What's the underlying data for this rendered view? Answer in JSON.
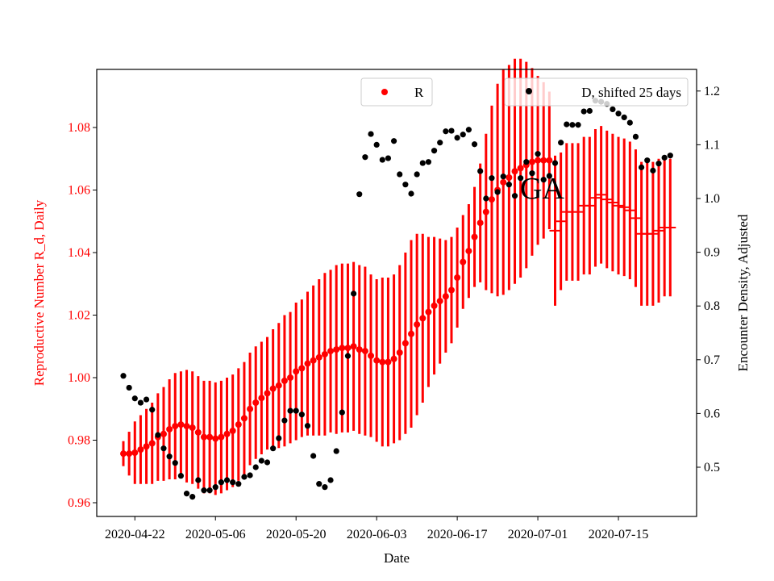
{
  "chart_data": {
    "type": "scatter",
    "annotation": "GA",
    "xlabel": "Date",
    "ylabel_left": "Reproductive Number R_d, Daily",
    "ylabel_right": "Encounter Density, Adjusted",
    "x_ticks": [
      "2020-04-22",
      "2020-05-06",
      "2020-05-20",
      "2020-06-03",
      "2020-06-17",
      "2020-07-01",
      "2020-07-15"
    ],
    "y_left_ticks": [
      "0.96",
      "0.98",
      "1.00",
      "1.02",
      "1.04",
      "1.06",
      "1.08"
    ],
    "y_right_ticks": [
      "0.5",
      "0.6",
      "0.7",
      "0.8",
      "0.9",
      "1.0",
      "1.1",
      "1.2"
    ],
    "y_left_lim": [
      0.955,
      1.097
    ],
    "y_right_lim": [
      0.41,
      1.24
    ],
    "grid": false,
    "legend": [
      {
        "label": "R",
        "placement": "top-center"
      },
      {
        "label": "D, shifted 25 days",
        "placement": "top-right"
      }
    ],
    "colors": {
      "R": "#ff0000",
      "D": "#000000",
      "left_axis": "#ff0000"
    },
    "series": [
      {
        "name": "R",
        "axis": "left",
        "marker": "dot",
        "x": [
          "2020-04-20",
          "2020-04-21",
          "2020-04-22",
          "2020-04-23",
          "2020-04-24",
          "2020-04-25",
          "2020-04-26",
          "2020-04-27",
          "2020-04-28",
          "2020-04-29",
          "2020-04-30",
          "2020-05-01",
          "2020-05-02",
          "2020-05-03",
          "2020-05-04",
          "2020-05-05",
          "2020-05-06",
          "2020-05-07",
          "2020-05-08",
          "2020-05-09",
          "2020-05-10",
          "2020-05-11",
          "2020-05-12",
          "2020-05-13",
          "2020-05-14",
          "2020-05-15",
          "2020-05-16",
          "2020-05-17",
          "2020-05-18",
          "2020-05-19",
          "2020-05-20",
          "2020-05-21",
          "2020-05-22",
          "2020-05-23",
          "2020-05-24",
          "2020-05-25",
          "2020-05-26",
          "2020-05-27",
          "2020-05-28",
          "2020-05-29",
          "2020-05-30",
          "2020-05-31",
          "2020-06-01",
          "2020-06-02",
          "2020-06-03",
          "2020-06-04",
          "2020-06-05",
          "2020-06-06",
          "2020-06-07",
          "2020-06-08",
          "2020-06-09",
          "2020-06-10",
          "2020-06-11",
          "2020-06-12",
          "2020-06-13",
          "2020-06-14",
          "2020-06-15",
          "2020-06-16",
          "2020-06-17",
          "2020-06-18",
          "2020-06-19",
          "2020-06-20",
          "2020-06-21",
          "2020-06-22",
          "2020-06-23",
          "2020-06-24",
          "2020-06-25",
          "2020-06-26",
          "2020-06-27",
          "2020-06-28",
          "2020-06-29",
          "2020-06-30",
          "2020-07-01",
          "2020-07-02",
          "2020-07-03"
        ],
        "y": [
          0.9757,
          0.9757,
          0.976,
          0.977,
          0.978,
          0.979,
          0.981,
          0.982,
          0.9835,
          0.9845,
          0.985,
          0.9845,
          0.984,
          0.9825,
          0.981,
          0.981,
          0.9805,
          0.981,
          0.982,
          0.983,
          0.985,
          0.987,
          0.99,
          0.992,
          0.9935,
          0.995,
          0.9965,
          0.9975,
          0.999,
          1.0,
          1.002,
          1.003,
          1.0045,
          1.0055,
          1.0065,
          1.0075,
          1.0085,
          1.009,
          1.0095,
          1.0095,
          1.01,
          1.009,
          1.0085,
          1.007,
          1.0055,
          1.005,
          1.005,
          1.006,
          1.008,
          1.011,
          1.014,
          1.017,
          1.019,
          1.021,
          1.023,
          1.0245,
          1.026,
          1.028,
          1.032,
          1.037,
          1.0405,
          1.045,
          1.0495,
          1.053,
          1.057,
          1.06,
          1.0625,
          1.064,
          1.066,
          1.067,
          1.068,
          1.069,
          1.0695,
          1.0695,
          1.0695
        ],
        "yerr": [
          0.004,
          0.007,
          0.01,
          0.011,
          0.012,
          0.013,
          0.014,
          0.015,
          0.016,
          0.017,
          0.017,
          0.018,
          0.018,
          0.018,
          0.018,
          0.018,
          0.018,
          0.018,
          0.018,
          0.018,
          0.018,
          0.018,
          0.018,
          0.018,
          0.018,
          0.018,
          0.019,
          0.02,
          0.021,
          0.021,
          0.022,
          0.022,
          0.023,
          0.024,
          0.025,
          0.026,
          0.026,
          0.027,
          0.027,
          0.027,
          0.027,
          0.027,
          0.027,
          0.026,
          0.026,
          0.027,
          0.027,
          0.027,
          0.028,
          0.029,
          0.03,
          0.029,
          0.027,
          0.024,
          0.022,
          0.02,
          0.018,
          0.017,
          0.016,
          0.015,
          0.015,
          0.016,
          0.019,
          0.025,
          0.03,
          0.034,
          0.036,
          0.036,
          0.036,
          0.035,
          0.033,
          0.03,
          0.027,
          0.025,
          0.022
        ]
      },
      {
        "axis": "left",
        "marker": "hline",
        "x": [
          "2020-07-04",
          "2020-07-05",
          "2020-07-06",
          "2020-07-07",
          "2020-07-08",
          "2020-07-09",
          "2020-07-10",
          "2020-07-11",
          "2020-07-12",
          "2020-07-13",
          "2020-07-14",
          "2020-07-15",
          "2020-07-16",
          "2020-07-17",
          "2020-07-18",
          "2020-07-19",
          "2020-07-20",
          "2020-07-21",
          "2020-07-22",
          "2020-07-23",
          "2020-07-24"
        ],
        "y": [
          1.047,
          1.05,
          1.053,
          1.053,
          1.053,
          1.055,
          1.055,
          1.0575,
          1.0585,
          1.057,
          1.056,
          1.055,
          1.0545,
          1.0535,
          1.051,
          1.046,
          1.046,
          1.046,
          1.047,
          1.048,
          1.048
        ],
        "yerr": [
          0.024,
          0.022,
          0.022,
          0.022,
          0.022,
          0.022,
          0.022,
          0.022,
          0.022,
          0.022,
          0.022,
          0.022,
          0.022,
          0.022,
          0.022,
          0.023,
          0.023,
          0.023,
          0.023,
          0.022,
          0.022
        ]
      },
      {
        "name": "D, shifted 25 days",
        "axis": "right",
        "marker": "dot",
        "x": [
          "2020-04-20",
          "2020-04-21",
          "2020-04-22",
          "2020-04-23",
          "2020-04-24",
          "2020-04-25",
          "2020-04-26",
          "2020-04-27",
          "2020-04-28",
          "2020-04-29",
          "2020-04-30",
          "2020-05-01",
          "2020-05-02",
          "2020-05-03",
          "2020-05-04",
          "2020-05-05",
          "2020-05-06",
          "2020-05-07",
          "2020-05-08",
          "2020-05-09",
          "2020-05-10",
          "2020-05-11",
          "2020-05-12",
          "2020-05-13",
          "2020-05-14",
          "2020-05-15",
          "2020-05-16",
          "2020-05-17",
          "2020-05-18",
          "2020-05-19",
          "2020-05-20",
          "2020-05-21",
          "2020-05-22",
          "2020-05-23",
          "2020-05-24",
          "2020-05-25",
          "2020-05-26",
          "2020-05-27",
          "2020-05-28",
          "2020-05-29",
          "2020-05-30",
          "2020-05-31",
          "2020-06-01",
          "2020-06-02",
          "2020-06-03",
          "2020-06-04",
          "2020-06-05",
          "2020-06-06",
          "2020-06-07",
          "2020-06-08",
          "2020-06-09",
          "2020-06-10",
          "2020-06-11",
          "2020-06-12",
          "2020-06-13",
          "2020-06-14",
          "2020-06-15",
          "2020-06-16",
          "2020-06-17",
          "2020-06-18",
          "2020-06-19",
          "2020-06-20",
          "2020-06-21",
          "2020-06-22",
          "2020-06-23",
          "2020-06-24",
          "2020-06-25",
          "2020-06-26",
          "2020-06-27",
          "2020-06-28",
          "2020-06-29",
          "2020-06-30",
          "2020-07-01",
          "2020-07-02",
          "2020-07-03",
          "2020-07-04",
          "2020-07-05",
          "2020-07-06",
          "2020-07-07",
          "2020-07-08",
          "2020-07-09",
          "2020-07-10",
          "2020-07-11",
          "2020-07-12",
          "2020-07-13",
          "2020-07-14",
          "2020-07-15",
          "2020-07-16",
          "2020-07-17",
          "2020-07-18",
          "2020-07-19",
          "2020-07-20",
          "2020-07-21",
          "2020-07-22",
          "2020-07-23",
          "2020-07-24"
        ],
        "y": [
          0.67,
          0.648,
          0.628,
          0.62,
          0.626,
          0.607,
          0.56,
          0.535,
          0.52,
          0.508,
          0.484,
          0.451,
          0.445,
          0.476,
          0.457,
          0.457,
          0.463,
          0.472,
          0.476,
          0.472,
          0.469,
          0.482,
          0.485,
          0.5,
          0.512,
          0.509,
          0.535,
          0.554,
          0.587,
          0.605,
          0.605,
          0.598,
          0.577,
          0.521,
          0.469,
          0.463,
          0.476,
          0.53,
          0.602,
          0.707,
          0.823,
          1.008,
          1.077,
          1.12,
          1.1,
          1.072,
          1.075,
          1.107,
          1.045,
          1.026,
          1.009,
          1.045,
          1.066,
          1.068,
          1.089,
          1.104,
          1.125,
          1.126,
          1.113,
          1.119,
          1.128,
          1.101,
          1.051,
          1.0,
          1.038,
          1.012,
          1.041,
          1.026,
          1.005,
          1.038,
          1.068,
          1.047,
          1.083,
          1.035,
          1.042,
          1.066,
          1.104,
          1.138,
          1.137,
          1.137,
          1.162,
          1.163,
          1.182,
          1.18,
          1.176,
          1.166,
          1.158,
          1.151,
          1.141,
          1.115,
          1.058,
          1.071,
          1.052,
          1.065,
          1.076,
          1.08
        ]
      }
    ]
  }
}
